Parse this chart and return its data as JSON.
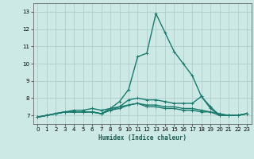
{
  "title": "",
  "xlabel": "Humidex (Indice chaleur)",
  "ylabel": "",
  "background_color": "#cce9e5",
  "grid_color": "#b0cfcc",
  "line_color": "#1a7a6e",
  "xlim": [
    -0.5,
    23.5
  ],
  "ylim": [
    6.5,
    13.5
  ],
  "xticks": [
    0,
    1,
    2,
    3,
    4,
    5,
    6,
    7,
    8,
    9,
    10,
    11,
    12,
    13,
    14,
    15,
    16,
    17,
    18,
    19,
    20,
    21,
    22,
    23
  ],
  "yticks": [
    7,
    8,
    9,
    10,
    11,
    12,
    13
  ],
  "series": [
    {
      "x": [
        0,
        1,
        2,
        3,
        4,
        5,
        6,
        7,
        8,
        9,
        10,
        11,
        12,
        13,
        14,
        15,
        16,
        17,
        18,
        19,
        20,
        21,
        22,
        23
      ],
      "y": [
        6.9,
        7.0,
        7.1,
        7.2,
        7.2,
        7.2,
        7.2,
        7.1,
        7.4,
        7.8,
        8.5,
        10.4,
        10.6,
        12.9,
        11.8,
        10.7,
        10.0,
        9.3,
        8.1,
        7.5,
        7.0,
        7.0,
        7.0,
        7.1
      ]
    },
    {
      "x": [
        0,
        1,
        2,
        3,
        4,
        5,
        6,
        7,
        8,
        9,
        10,
        11,
        12,
        13,
        14,
        15,
        16,
        17,
        18,
        19,
        20,
        21,
        22,
        23
      ],
      "y": [
        6.9,
        7.0,
        7.1,
        7.2,
        7.2,
        7.2,
        7.2,
        7.1,
        7.3,
        7.5,
        7.9,
        8.0,
        7.9,
        7.9,
        7.8,
        7.7,
        7.7,
        7.7,
        8.1,
        7.4,
        7.0,
        7.0,
        7.0,
        7.1
      ]
    },
    {
      "x": [
        0,
        1,
        2,
        3,
        4,
        5,
        6,
        7,
        8,
        9,
        10,
        11,
        12,
        13,
        14,
        15,
        16,
        17,
        18,
        19,
        20,
        21,
        22,
        23
      ],
      "y": [
        6.9,
        7.0,
        7.1,
        7.2,
        7.2,
        7.2,
        7.2,
        7.1,
        7.3,
        7.4,
        7.6,
        7.7,
        7.5,
        7.5,
        7.4,
        7.4,
        7.3,
        7.3,
        7.2,
        7.2,
        7.0,
        7.0,
        7.0,
        7.1
      ]
    },
    {
      "x": [
        0,
        1,
        2,
        3,
        4,
        5,
        6,
        7,
        8,
        9,
        10,
        11,
        12,
        13,
        14,
        15,
        16,
        17,
        18,
        19,
        20,
        21,
        22,
        23
      ],
      "y": [
        6.9,
        7.0,
        7.1,
        7.2,
        7.3,
        7.3,
        7.4,
        7.3,
        7.4,
        7.5,
        7.6,
        7.7,
        7.6,
        7.6,
        7.5,
        7.5,
        7.4,
        7.4,
        7.3,
        7.2,
        7.1,
        7.0,
        7.0,
        7.1
      ]
    }
  ]
}
